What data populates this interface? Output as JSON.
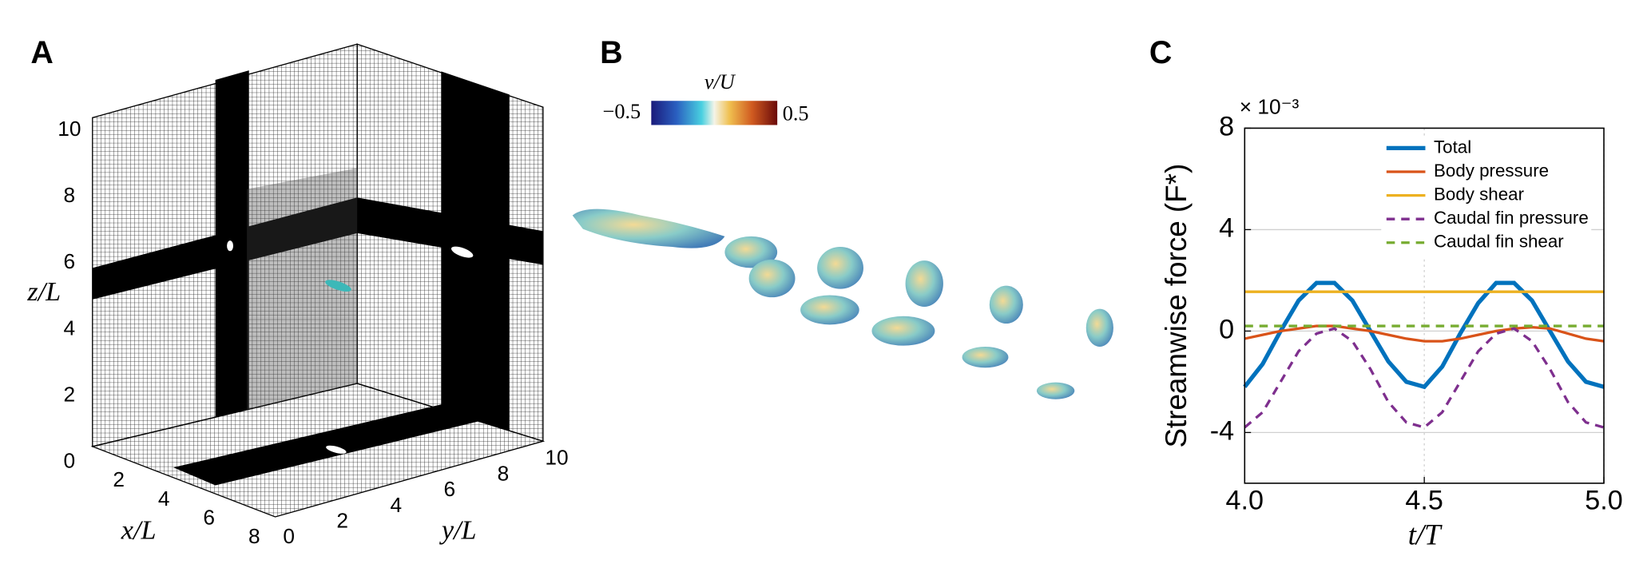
{
  "panel_labels": [
    "A",
    "B",
    "C"
  ],
  "panel_a": {
    "z_label": "z/L",
    "x_label": "x/L",
    "y_label": "y/L",
    "z_ticks": [
      0,
      2,
      4,
      6,
      8,
      10
    ],
    "x_ticks": [
      2,
      4,
      6,
      8
    ],
    "y_ticks": [
      0,
      2,
      4,
      6,
      8,
      10
    ]
  },
  "panel_b": {
    "colorbar_label": "v/U",
    "colorbar_ticks": [
      {
        "value": -0.5,
        "label": "−0.5"
      },
      0.5
    ]
  },
  "chart_data": {
    "type": "line",
    "y_label": "Streamwise force (F*)",
    "x_label": "t/T",
    "annotation": "× 10⁻³",
    "x": [
      4.0,
      4.05,
      4.1,
      4.15,
      4.2,
      4.25,
      4.3,
      4.35,
      4.4,
      4.45,
      4.5,
      4.55,
      4.6,
      4.65,
      4.7,
      4.75,
      4.8,
      4.85,
      4.9,
      4.95,
      5.0
    ],
    "series": [
      {
        "name": "Total",
        "color": "#0072bd",
        "dashed": false,
        "values": [
          -2.2,
          -1.3,
          0.0,
          1.2,
          1.9,
          1.9,
          1.2,
          0.0,
          -1.2,
          -2.0,
          -2.2,
          -1.4,
          -0.1,
          1.1,
          1.9,
          1.9,
          1.2,
          0.0,
          -1.2,
          -2.0,
          -2.2
        ]
      },
      {
        "name": "Body pressure",
        "color": "#d95319",
        "dashed": false,
        "values": [
          -0.3,
          -0.15,
          0.0,
          0.1,
          0.2,
          0.2,
          0.1,
          0.0,
          -0.15,
          -0.3,
          -0.4,
          -0.4,
          -0.3,
          -0.15,
          0.0,
          0.1,
          0.15,
          0.1,
          -0.1,
          -0.3,
          -0.4
        ]
      },
      {
        "name": "Body shear",
        "color": "#edb120",
        "dashed": false,
        "values": [
          1.55,
          1.55,
          1.55,
          1.55,
          1.55,
          1.55,
          1.55,
          1.55,
          1.55,
          1.55,
          1.55,
          1.55,
          1.55,
          1.55,
          1.55,
          1.55,
          1.55,
          1.55,
          1.55,
          1.55,
          1.55
        ]
      },
      {
        "name": "Caudal fin pressure",
        "color": "#7e2f8e",
        "dashed": true,
        "values": [
          -3.8,
          -3.2,
          -2.0,
          -0.8,
          -0.1,
          0.1,
          -0.4,
          -1.5,
          -2.8,
          -3.6,
          -3.8,
          -3.2,
          -2.0,
          -0.8,
          -0.1,
          0.1,
          -0.4,
          -1.5,
          -2.8,
          -3.6,
          -3.8
        ]
      },
      {
        "name": "Caudal fin shear",
        "color": "#77ac30",
        "dashed": true,
        "values": [
          0.2,
          0.2,
          0.2,
          0.2,
          0.2,
          0.2,
          0.2,
          0.2,
          0.2,
          0.2,
          0.2,
          0.2,
          0.2,
          0.2,
          0.2,
          0.2,
          0.2,
          0.2,
          0.2,
          0.2,
          0.2
        ]
      }
    ],
    "xlim": [
      4,
      5
    ],
    "xticks": [
      {
        "value": 4,
        "label": "4.0"
      },
      {
        "value": 4.5,
        "label": "4.5"
      },
      {
        "value": 5,
        "label": "5.0"
      }
    ],
    "ylim": [
      -6,
      8
    ],
    "yticks": [
      -4,
      0,
      4,
      8
    ],
    "grid": true,
    "legend": "upper right"
  }
}
